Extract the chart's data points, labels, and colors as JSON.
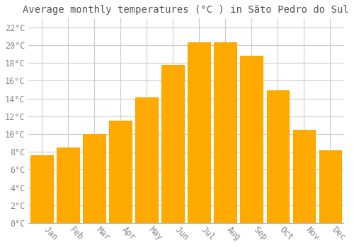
{
  "title": "Average monthly temperatures (°C ) in Sãto Pedro do Sul",
  "months": [
    "Jan",
    "Feb",
    "Mar",
    "Apr",
    "May",
    "Jun",
    "Jul",
    "Aug",
    "Sep",
    "Oct",
    "Nov",
    "Dec"
  ],
  "values": [
    7.6,
    8.5,
    10.0,
    11.5,
    14.1,
    17.8,
    20.3,
    20.3,
    18.8,
    14.9,
    10.5,
    8.2
  ],
  "bar_color": "#FFAA00",
  "bar_edge_color": "#FFA500",
  "background_color": "#FFFFFF",
  "grid_color": "#CCCCCC",
  "text_color": "#888888",
  "title_color": "#555555",
  "ylim": [
    0,
    23
  ],
  "yticks": [
    0,
    2,
    4,
    6,
    8,
    10,
    12,
    14,
    16,
    18,
    20,
    22
  ],
  "title_fontsize": 10,
  "tick_fontsize": 8.5,
  "font_family": "monospace",
  "bar_width": 0.85
}
